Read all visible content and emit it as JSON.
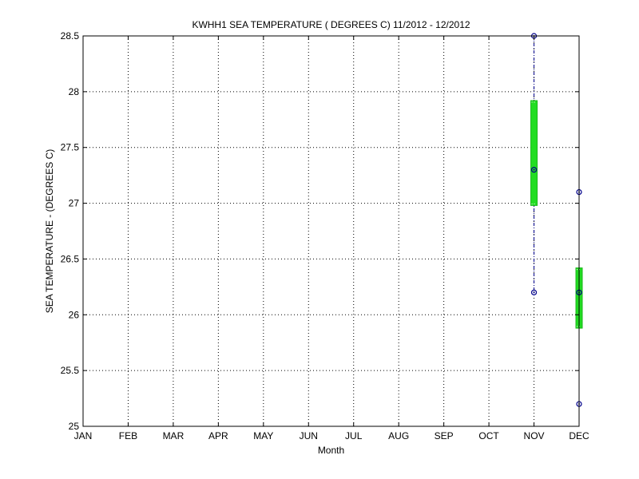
{
  "chart_data": {
    "type": "box",
    "title": "KWHH1  SEA TEMPERATURE ( DEGREES C) 11/2012 - 12/2012",
    "xlabel": "Month",
    "ylabel": "SEA TEMPERATURE -  (DEGREES C)",
    "categories": [
      "JAN",
      "FEB",
      "MAR",
      "APR",
      "MAY",
      "JUN",
      "JUL",
      "AUG",
      "SEP",
      "OCT",
      "NOV",
      "DEC"
    ],
    "ylim": [
      25,
      28.5
    ],
    "yticks": [
      25,
      25.5,
      26,
      26.5,
      27,
      27.5,
      28,
      28.5
    ],
    "ytick_labels": [
      "25",
      "25.5",
      "26",
      "26.5",
      "27",
      "27.5",
      "28",
      "28.5"
    ],
    "grid": true,
    "boxes": [
      {
        "category": "NOV",
        "min": 26.2,
        "q1": 26.98,
        "median": 27.3,
        "q3": 27.92,
        "max": 28.5
      },
      {
        "category": "DEC",
        "min": 25.2,
        "q1": 25.88,
        "median": 26.2,
        "q3": 26.42,
        "max": 27.1
      }
    ],
    "colors": {
      "box": "#22dd22",
      "whisker": "#00008b",
      "marker": "#00008b",
      "grid": "#000000"
    }
  }
}
